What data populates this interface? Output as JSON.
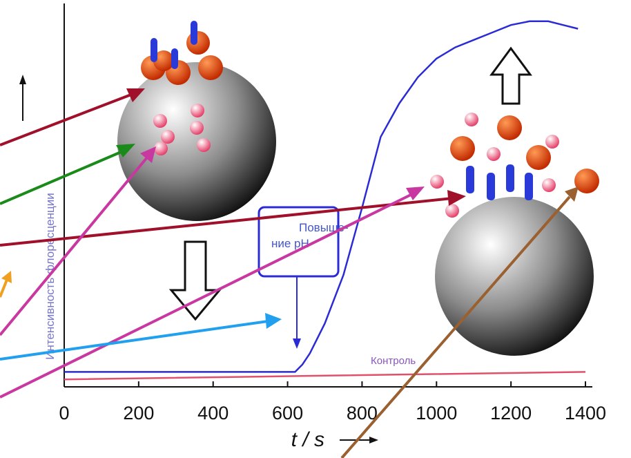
{
  "chart_data": {
    "type": "line",
    "x_label": "t / s",
    "y_label": "Интенсивность флоресценции",
    "xlim": [
      0,
      1400
    ],
    "xticks": [
      0,
      200,
      400,
      600,
      800,
      1000,
      1200,
      1400
    ],
    "ylim": [
      0,
      100
    ],
    "annotation": [
      "Повыше-",
      "ние pH"
    ],
    "series": [
      {
        "color": "#2b2bd6",
        "x": [
          0,
          300,
          620,
          640,
          660,
          700,
          750,
          800,
          850,
          900,
          950,
          1000,
          1050,
          1100,
          1150,
          1200,
          1250,
          1300,
          1340,
          1380
        ],
        "values": [
          4,
          4,
          4,
          6,
          9,
          17,
          30,
          48,
          67,
          76,
          83,
          88,
          91,
          93,
          95,
          97,
          98,
          98,
          97,
          96
        ]
      },
      {
        "name": "Контроль",
        "color": "#e0506a",
        "x": [
          0,
          700,
          1400
        ],
        "values": [
          2,
          3,
          4
        ]
      }
    ]
  }
}
